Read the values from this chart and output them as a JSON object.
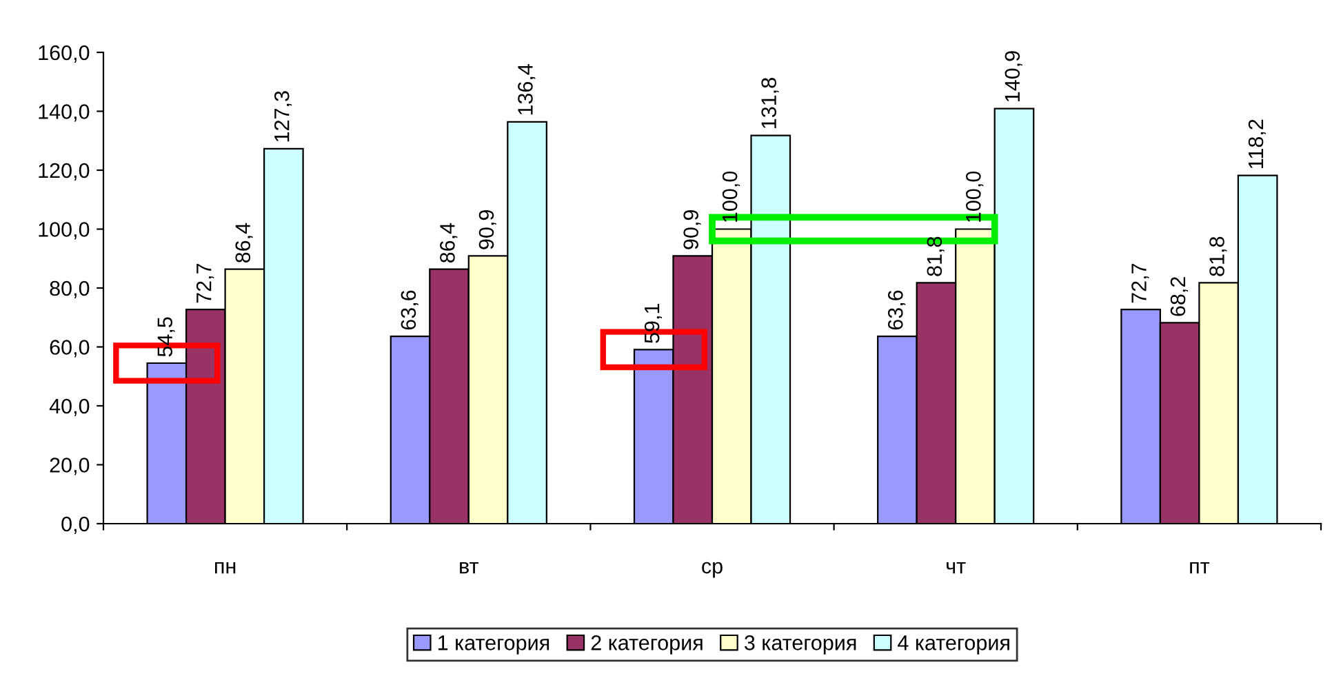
{
  "chart_data": {
    "type": "bar",
    "categories": [
      "пн",
      "вт",
      "ср",
      "чт",
      "пт"
    ],
    "series": [
      {
        "name": "1 категория",
        "color": "#9999ff",
        "values": [
          54.5,
          63.6,
          59.1,
          63.6,
          72.7
        ],
        "value_labels": [
          "54,5",
          "63,6",
          "59,1",
          "63,6",
          "72,7"
        ]
      },
      {
        "name": "2 категория",
        "color": "#993366",
        "values": [
          72.7,
          86.4,
          90.9,
          81.8,
          68.2
        ],
        "value_labels": [
          "72,7",
          "86,4",
          "90,9",
          "81,8",
          "68,2"
        ]
      },
      {
        "name": "3 категория",
        "color": "#ffffcc",
        "values": [
          86.4,
          90.9,
          100.0,
          100.0,
          81.8
        ],
        "value_labels": [
          "86,4",
          "90,9",
          "100,0",
          "100,0",
          "81,8"
        ]
      },
      {
        "name": "4 категория",
        "color": "#ccffff",
        "values": [
          127.3,
          136.4,
          131.8,
          140.9,
          118.2
        ],
        "value_labels": [
          "127,3",
          "136,4",
          "131,8",
          "140,9",
          "118,2"
        ]
      }
    ],
    "ylim": [
      0,
      160
    ],
    "yticks": [
      {
        "value": 0,
        "label": "0,0"
      },
      {
        "value": 20,
        "label": "20,0"
      },
      {
        "value": 40,
        "label": "40,0"
      },
      {
        "value": 60,
        "label": "60,0"
      },
      {
        "value": 80,
        "label": "80,0"
      },
      {
        "value": 100,
        "label": "100,0"
      },
      {
        "value": 120,
        "label": "120,0"
      },
      {
        "value": 140,
        "label": "140,0"
      },
      {
        "value": 160,
        "label": "160,0"
      }
    ],
    "grid": false,
    "legend": "bottom"
  }
}
